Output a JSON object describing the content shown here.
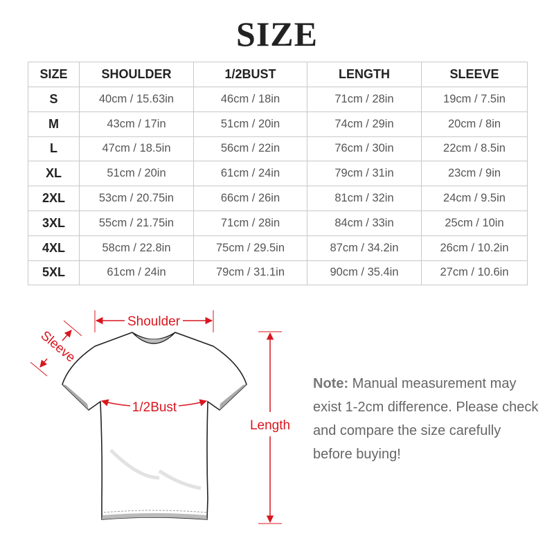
{
  "title": "SIZE",
  "table": {
    "headers": [
      "SIZE",
      "SHOULDER",
      "1/2BUST",
      "LENGTH",
      "SLEEVE"
    ],
    "rows": [
      [
        "S",
        "40cm / 15.63in",
        "46cm / 18in",
        "71cm / 28in",
        "19cm / 7.5in"
      ],
      [
        "M",
        "43cm / 17in",
        "51cm / 20in",
        "74cm / 29in",
        "20cm / 8in"
      ],
      [
        "L",
        "47cm / 18.5in",
        "56cm / 22in",
        "76cm / 30in",
        "22cm / 8.5in"
      ],
      [
        "XL",
        "51cm / 20in",
        "61cm / 24in",
        "79cm / 31in",
        "23cm / 9in"
      ],
      [
        "2XL",
        "53cm / 20.75in",
        "66cm / 26in",
        "81cm / 32in",
        "24cm / 9.5in"
      ],
      [
        "3XL",
        "55cm / 21.75in",
        "71cm / 28in",
        "84cm / 33in",
        "25cm / 10in"
      ],
      [
        "4XL",
        "58cm / 22.8in",
        "75cm / 29.5in",
        "87cm / 34.2in",
        "26cm / 10.2in"
      ],
      [
        "5XL",
        "61cm / 24in",
        "79cm / 31.1in",
        "90cm / 35.4in",
        "27cm / 10.6in"
      ]
    ]
  },
  "diagram": {
    "shoulder": "Shoulder",
    "sleeve": "Sleeve",
    "bust": "1/2Bust",
    "length": "Length",
    "accent_color": "#d8161e"
  },
  "note": {
    "label": "Note:",
    "text": "Manual measurement may exist 1-2cm difference. Please check and compare the size carefully before buying!"
  }
}
